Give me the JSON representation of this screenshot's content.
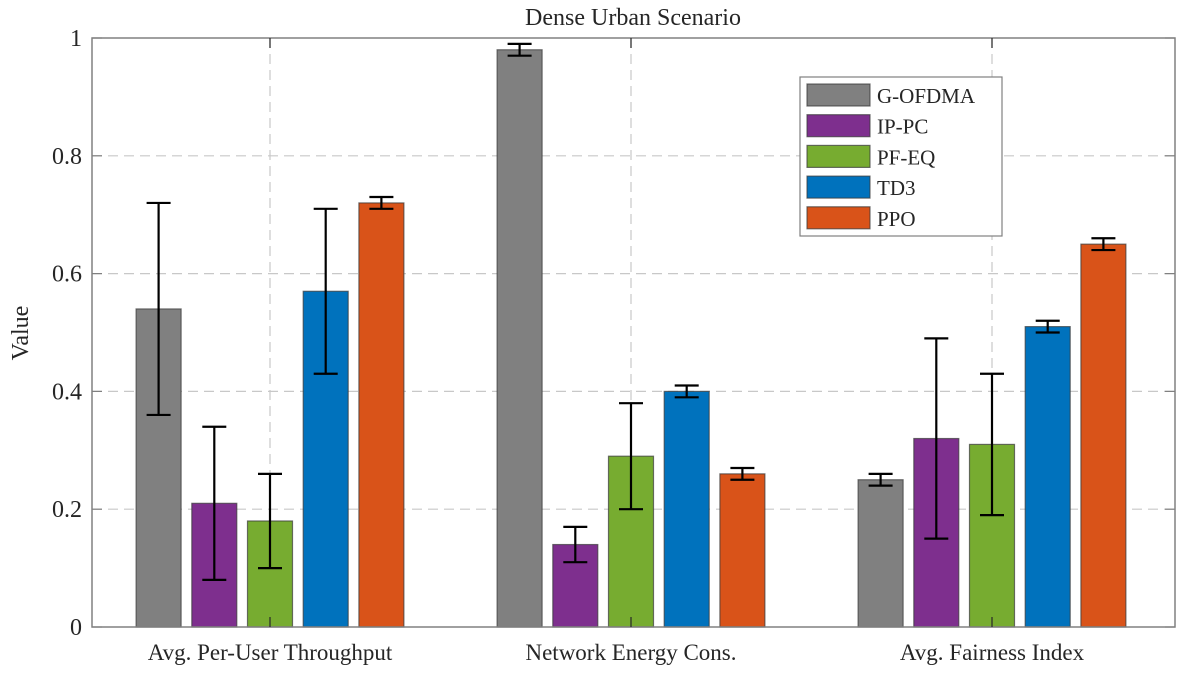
{
  "chart_data": {
    "type": "bar",
    "title": "Dense Urban Scenario",
    "xlabel": "",
    "ylabel": "Value",
    "ylim": [
      0,
      1
    ],
    "yticks": [
      0,
      0.2,
      0.4,
      0.6,
      0.8,
      1
    ],
    "ytick_labels": [
      "0",
      "0.2",
      "0.4",
      "0.6",
      "0.8",
      "1"
    ],
    "grid": true,
    "legend_position": "top-right",
    "categories": [
      "Avg. Per-User Throughput",
      "Network Energy Cons.",
      "Avg. Fairness Index"
    ],
    "series": [
      {
        "name": "G-OFDMA",
        "color": "#808080",
        "values": [
          0.54,
          0.98,
          0.25
        ],
        "err_low": [
          0.36,
          0.97,
          0.24
        ],
        "err_high": [
          0.72,
          0.99,
          0.26
        ]
      },
      {
        "name": "IP-PC",
        "color": "#7E2F8E",
        "values": [
          0.21,
          0.14,
          0.32
        ],
        "err_low": [
          0.08,
          0.11,
          0.15
        ],
        "err_high": [
          0.34,
          0.17,
          0.49
        ]
      },
      {
        "name": "PF-EQ",
        "color": "#77AC30",
        "values": [
          0.18,
          0.29,
          0.31
        ],
        "err_low": [
          0.1,
          0.2,
          0.19
        ],
        "err_high": [
          0.26,
          0.38,
          0.43
        ]
      },
      {
        "name": "TD3",
        "color": "#0072BD",
        "values": [
          0.57,
          0.4,
          0.51
        ],
        "err_low": [
          0.43,
          0.39,
          0.5
        ],
        "err_high": [
          0.71,
          0.41,
          0.52
        ]
      },
      {
        "name": "PPO",
        "color": "#D95319",
        "values": [
          0.72,
          0.26,
          0.65
        ],
        "err_low": [
          0.71,
          0.25,
          0.64
        ],
        "err_high": [
          0.73,
          0.27,
          0.66
        ]
      }
    ]
  }
}
